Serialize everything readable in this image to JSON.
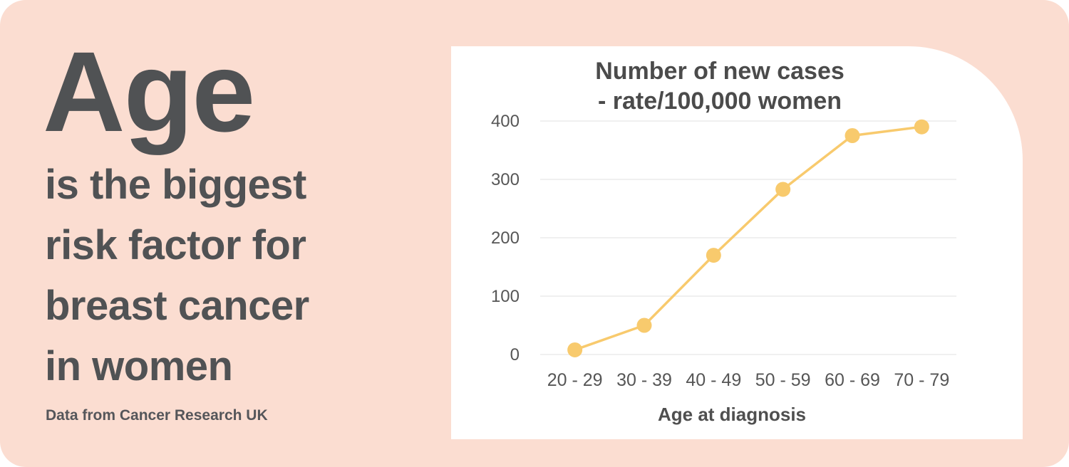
{
  "card": {
    "headline": "Age",
    "subheadline_lines": [
      "is the biggest",
      "risk factor for",
      "breast cancer",
      "in women"
    ],
    "source": "Data from Cancer Research UK"
  },
  "colors": {
    "card_bg": "#fbddd1",
    "panel_bg": "#ffffff",
    "headline_text": "#505254",
    "chart_title_text": "#4b4b4b",
    "axis_text": "#565656",
    "line": "#f8ca6d",
    "grid": "#ececec"
  },
  "chart_data": {
    "type": "line",
    "title_lines": [
      "Number of new cases",
      "- rate/100,000 women"
    ],
    "categories": [
      "20 - 29",
      "30 - 39",
      "40 - 49",
      "50 - 59",
      "60 - 69",
      "70 - 79"
    ],
    "values": [
      8,
      50,
      170,
      283,
      375,
      390
    ],
    "xlabel": "Age at diagnosis",
    "ylabel": "",
    "ylim": [
      0,
      400
    ],
    "yticks": [
      0,
      100,
      200,
      300,
      400
    ],
    "grid": true,
    "legend_position": "none",
    "marker": "circle"
  }
}
